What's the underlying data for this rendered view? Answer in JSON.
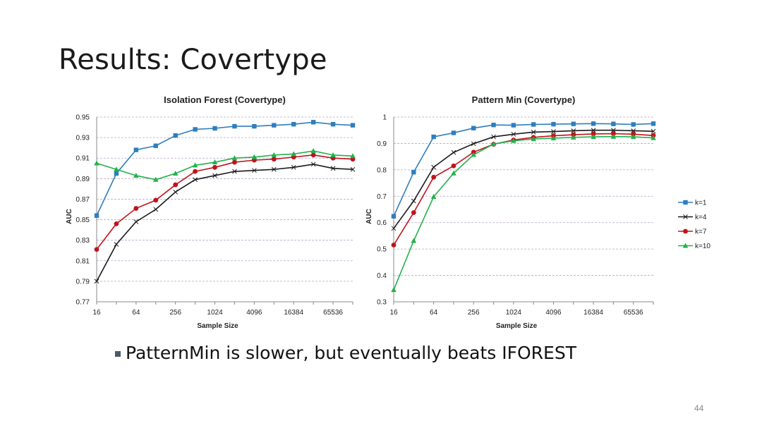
{
  "slide": {
    "title": "Results: Covertype",
    "bullet": "PatternMin is slower, but eventually beats IFOREST",
    "page_number": "44"
  },
  "colors": {
    "k1": "#2e7ebf",
    "k4": "#1a1a1a",
    "k7": "#c0131a",
    "k10": "#22b14c",
    "grid": "#b9a5c9",
    "axis": "#888888"
  },
  "chart_data": [
    {
      "type": "line",
      "title": "Isolation Forest (Covertype)",
      "xlabel": "Sample Size",
      "ylabel": "AUC",
      "x": [
        16,
        32,
        64,
        128,
        256,
        512,
        1024,
        2048,
        4096,
        8192,
        16384,
        32768,
        65536,
        131072
      ],
      "xticks": [
        "16",
        "64",
        "256",
        "1024",
        "4096",
        "16384",
        "65536"
      ],
      "yticks": [
        "0.77",
        "0.79",
        "0.81",
        "0.83",
        "0.85",
        "0.87",
        "0.89",
        "0.91",
        "0.93",
        "0.95"
      ],
      "ylim": [
        0.77,
        0.95
      ],
      "grid": true,
      "legend": "none",
      "series": [
        {
          "name": "k=1",
          "marker": "square",
          "color": "#2e7ebf",
          "values": [
            0.854,
            0.895,
            0.918,
            0.922,
            0.932,
            0.938,
            0.939,
            0.941,
            0.941,
            0.942,
            0.943,
            0.945,
            0.943,
            0.942
          ]
        },
        {
          "name": "k=4",
          "marker": "x",
          "color": "#1a1a1a",
          "values": [
            0.79,
            0.826,
            0.848,
            0.86,
            0.877,
            0.889,
            0.893,
            0.897,
            0.898,
            0.899,
            0.901,
            0.904,
            0.9,
            0.899
          ]
        },
        {
          "name": "k=7",
          "marker": "circle",
          "color": "#c0131a",
          "values": [
            0.821,
            0.846,
            0.861,
            0.869,
            0.884,
            0.897,
            0.901,
            0.906,
            0.908,
            0.909,
            0.911,
            0.913,
            0.91,
            0.909
          ]
        },
        {
          "name": "k=10",
          "marker": "triangle",
          "color": "#22b14c",
          "values": [
            0.905,
            0.899,
            0.893,
            0.889,
            0.895,
            0.903,
            0.906,
            0.91,
            0.911,
            0.913,
            0.914,
            0.917,
            0.913,
            0.912
          ]
        }
      ]
    },
    {
      "type": "line",
      "title": "Pattern Min (Covertype)",
      "xlabel": "Sample Size",
      "ylabel": "AUC",
      "x": [
        16,
        32,
        64,
        128,
        256,
        512,
        1024,
        2048,
        4096,
        8192,
        16384,
        32768,
        65536,
        131072
      ],
      "xticks": [
        "16",
        "64",
        "256",
        "1024",
        "4096",
        "16384",
        "65536"
      ],
      "yticks": [
        "0.3",
        "0.4",
        "0.5",
        "0.6",
        "0.7",
        "0.8",
        "0.9",
        "1"
      ],
      "ylim": [
        0.3,
        1.0
      ],
      "grid": true,
      "legend": "right",
      "series": [
        {
          "name": "k=1",
          "marker": "square",
          "color": "#2e7ebf",
          "values": [
            0.624,
            0.791,
            0.925,
            0.94,
            0.958,
            0.97,
            0.969,
            0.972,
            0.973,
            0.974,
            0.975,
            0.974,
            0.972,
            0.975
          ]
        },
        {
          "name": "k=4",
          "marker": "x",
          "color": "#1a1a1a",
          "values": [
            0.578,
            0.682,
            0.81,
            0.866,
            0.899,
            0.925,
            0.935,
            0.943,
            0.945,
            0.948,
            0.95,
            0.95,
            0.948,
            0.946
          ]
        },
        {
          "name": "k=7",
          "marker": "circle",
          "color": "#c0131a",
          "values": [
            0.515,
            0.638,
            0.772,
            0.815,
            0.867,
            0.897,
            0.913,
            0.923,
            0.929,
            0.933,
            0.936,
            0.937,
            0.935,
            0.93
          ]
        },
        {
          "name": "k=10",
          "marker": "triangle",
          "color": "#22b14c",
          "values": [
            0.345,
            0.531,
            0.698,
            0.787,
            0.857,
            0.898,
            0.91,
            0.917,
            0.92,
            0.923,
            0.925,
            0.926,
            0.925,
            0.921
          ]
        }
      ]
    }
  ]
}
